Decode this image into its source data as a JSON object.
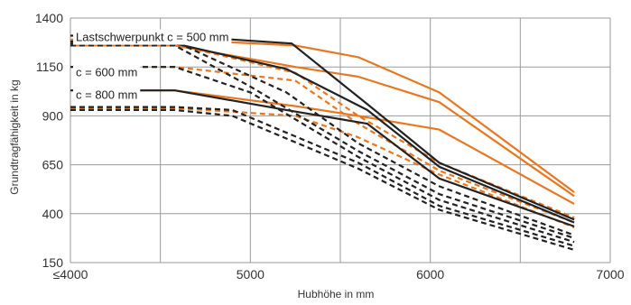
{
  "chart_data": {
    "type": "line",
    "title": "",
    "xlabel": "Hubhöhe in mm",
    "ylabel": "Grundtragfähigkeit in kg",
    "xlim": [
      4000,
      7000
    ],
    "ylim": [
      150,
      1400
    ],
    "x_ticks": [
      {
        "value": 4000,
        "label": "≤4000"
      },
      {
        "value": 5000,
        "label": "5000"
      },
      {
        "value": 6000,
        "label": "6000"
      },
      {
        "value": 7000,
        "label": "7000"
      }
    ],
    "y_ticks": [
      {
        "value": 150,
        "label": "150"
      },
      {
        "value": 400,
        "label": "400"
      },
      {
        "value": 650,
        "label": "650"
      },
      {
        "value": 900,
        "label": "900"
      },
      {
        "value": 1150,
        "label": "1150"
      },
      {
        "value": 1400,
        "label": "1400"
      }
    ],
    "grid": true,
    "annotations": [
      {
        "text": "Lastschwerpunkt c = 500 mm",
        "x": 4000,
        "y": 1305
      },
      {
        "text": "c = 600 mm",
        "x": 4000,
        "y": 1125
      },
      {
        "text": "c = 800 mm",
        "x": 4000,
        "y": 1010
      }
    ],
    "series": [
      {
        "color": "#e87722",
        "dash": false,
        "x": [
          4000,
          4580,
          5250,
          5600,
          6050,
          6800
        ],
        "y": [
          1290,
          1290,
          1260,
          1200,
          1020,
          510
        ]
      },
      {
        "color": "#e87722",
        "dash": false,
        "x": [
          4000,
          4580,
          5250,
          5600,
          6050,
          6800
        ],
        "y": [
          1260,
          1260,
          1150,
          1100,
          970,
          490
        ]
      },
      {
        "color": "#e87722",
        "dash": false,
        "x": [
          4000,
          4580,
          5250,
          5600,
          6050,
          6800
        ],
        "y": [
          1030,
          1030,
          950,
          900,
          830,
          450
        ]
      },
      {
        "color": "#e87722",
        "dash": true,
        "x": [
          4000,
          4580,
          5250,
          5600,
          6050,
          6800
        ],
        "y": [
          1265,
          1265,
          1120,
          900,
          660,
          380
        ]
      },
      {
        "color": "#e87722",
        "dash": true,
        "x": [
          4000,
          4580,
          5250,
          5600,
          6050,
          6800
        ],
        "y": [
          1150,
          1150,
          1080,
          860,
          620,
          355
        ]
      },
      {
        "color": "#e87722",
        "dash": true,
        "x": [
          4000,
          4580,
          5250,
          5600,
          6050,
          6800
        ],
        "y": [
          940,
          940,
          900,
          790,
          600,
          330
        ]
      },
      {
        "color": "#222222",
        "dash": false,
        "x": [
          4000,
          4580,
          5230,
          5650,
          6050,
          6800
        ],
        "y": [
          1310,
          1310,
          1270,
          960,
          660,
          370
        ]
      },
      {
        "color": "#222222",
        "dash": false,
        "x": [
          4000,
          4580,
          5200,
          5650,
          6050,
          6800
        ],
        "y": [
          1270,
          1270,
          1140,
          930,
          640,
          355
        ]
      },
      {
        "color": "#222222",
        "dash": false,
        "x": [
          4000,
          4580,
          5200,
          5650,
          6050,
          6800
        ],
        "y": [
          1030,
          1030,
          930,
          860,
          580,
          335
        ]
      },
      {
        "color": "#222222",
        "dash": true,
        "x": [
          4000,
          4580,
          5200,
          5600,
          6050,
          6800
        ],
        "y": [
          1280,
          1280,
          1020,
          760,
          540,
          290
        ]
      },
      {
        "color": "#222222",
        "dash": true,
        "x": [
          4000,
          4580,
          5000,
          5600,
          6050,
          6800
        ],
        "y": [
          1260,
          1260,
          1050,
          720,
          500,
          275
        ]
      },
      {
        "color": "#222222",
        "dash": true,
        "x": [
          4000,
          4580,
          5000,
          5600,
          6050,
          6800
        ],
        "y": [
          1150,
          1150,
          1020,
          690,
          470,
          255
        ]
      },
      {
        "color": "#222222",
        "dash": true,
        "x": [
          4000,
          4580,
          4900,
          5600,
          6050,
          6800
        ],
        "y": [
          945,
          945,
          930,
          660,
          440,
          235
        ]
      },
      {
        "color": "#222222",
        "dash": true,
        "x": [
          4000,
          4580,
          4900,
          5600,
          6050,
          6800
        ],
        "y": [
          930,
          930,
          900,
          630,
          420,
          215
        ]
      }
    ]
  }
}
